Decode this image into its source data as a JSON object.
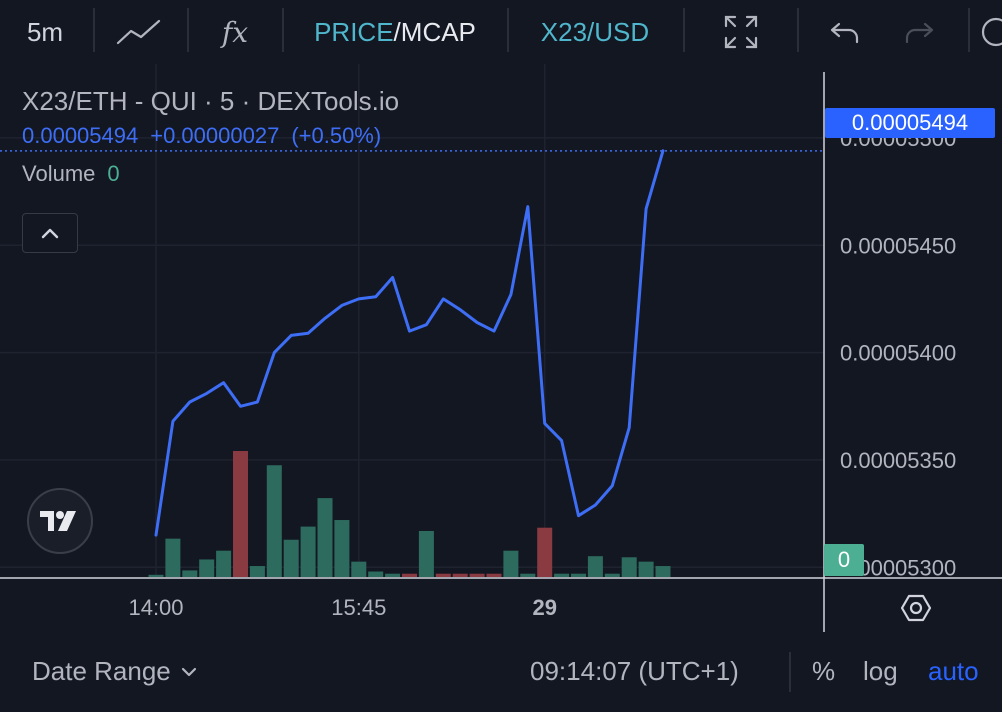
{
  "toolbar": {
    "interval": "5m",
    "price_label": "PRICE",
    "mcap_label": "MCAP",
    "pair_label": "X23/USD",
    "indicators_label": "fx"
  },
  "legend": {
    "title": "X23/ETH - QUI · 5 · DEXTools.io",
    "last_value": "0.00005494",
    "change": "+0.00000027",
    "change_pct": "(+0.50%)",
    "volume_label": "Volume",
    "volume_value": "0"
  },
  "price_badge": "0.00005494",
  "volume_badge": "0",
  "bottom": {
    "date_range": "Date Range",
    "clock": "09:14:07 (UTC+1)",
    "percent": "%",
    "log": "log",
    "auto": "auto"
  },
  "colors": {
    "background": "#131722",
    "line": "#3d6ef5",
    "up": "#2d6b5e",
    "down": "#8a3a41",
    "accent": "#2962ff",
    "cyan": "#4fb6cc"
  },
  "chart_data": {
    "type": "line",
    "title": "X23/ETH - QUI · 5 · DEXTools.io",
    "xlabel": "",
    "ylabel": "",
    "ylim": [
      5.295e-05,
      5.52e-05
    ],
    "y_ticks": [
      "0.00005300",
      "0.00005350",
      "0.00005400",
      "0.00005450",
      "0.00005500"
    ],
    "y_tick_values": [
      5.3e-05,
      5.35e-05,
      5.4e-05,
      5.45e-05,
      5.5e-05
    ],
    "x_ticks": [
      {
        "label": "14:00",
        "index": 0,
        "bold": false
      },
      {
        "label": "15:45",
        "index": 12,
        "bold": false
      },
      {
        "label": "29",
        "index": 23,
        "bold": true
      }
    ],
    "grid": true,
    "price_series": {
      "name": "X23/ETH",
      "values": [
        5.315e-05,
        5.368e-05,
        5.377e-05,
        5.381e-05,
        5.386e-05,
        5.375e-05,
        5.377e-05,
        5.4e-05,
        5.408e-05,
        5.409e-05,
        5.416e-05,
        5.422e-05,
        5.425e-05,
        5.426e-05,
        5.435e-05,
        5.41e-05,
        5.413e-05,
        5.425e-05,
        5.42e-05,
        5.414e-05,
        5.41e-05,
        5.427e-05,
        5.468e-05,
        5.367e-05,
        5.359e-05,
        5.324e-05,
        5.329e-05,
        5.338e-05,
        5.365e-05,
        5.467e-05,
        5.494e-05
      ]
    },
    "volume_series": {
      "name": "Volume",
      "values": [
        0.2,
        3.5,
        0.6,
        1.6,
        2.4,
        11.5,
        1.0,
        10.2,
        3.4,
        4.6,
        7.2,
        5.2,
        1.4,
        0.5,
        0.3,
        0.3,
        4.2,
        0.3,
        0.3,
        0.3,
        0.3,
        2.4,
        0.3,
        4.5,
        0.3,
        0.3,
        1.9,
        0.3,
        1.8,
        1.4,
        1.0
      ],
      "directions": [
        "up",
        "up",
        "up",
        "up",
        "up",
        "down",
        "up",
        "up",
        "up",
        "up",
        "up",
        "up",
        "up",
        "up",
        "up",
        "down",
        "up",
        "down",
        "down",
        "down",
        "down",
        "up",
        "up",
        "down",
        "up",
        "up",
        "up",
        "up",
        "up",
        "up",
        "up"
      ]
    }
  }
}
